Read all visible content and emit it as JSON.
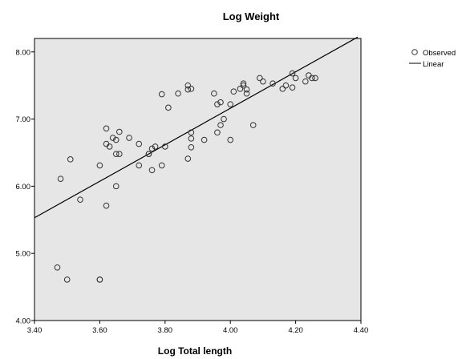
{
  "chart_data": {
    "type": "scatter",
    "title": "Log Weight",
    "xlabel": "Log Total length",
    "ylabel": "",
    "xlim": [
      3.4,
      4.4
    ],
    "ylim": [
      4.0,
      8.2
    ],
    "x_ticks": [
      3.4,
      3.6,
      3.8,
      4.0,
      4.2,
      4.4
    ],
    "x_tick_labels": [
      "3.40",
      "3.60",
      "3.80",
      "4.00",
      "4.20",
      "4.40"
    ],
    "y_ticks": [
      4.0,
      5.0,
      6.0,
      7.0,
      8.0
    ],
    "y_tick_labels": [
      "4.00",
      "5.00",
      "6.00",
      "7.00",
      "8.00"
    ],
    "grid": false,
    "plot_background": "#e6e6e6",
    "legend": {
      "placement": "right",
      "entries": [
        "Observed",
        "Linear"
      ]
    },
    "series": [
      {
        "name": "Observed",
        "marker": "open-circle",
        "color": "#333333",
        "points": [
          [
            3.48,
            6.11
          ],
          [
            3.51,
            6.4
          ],
          [
            3.47,
            4.79
          ],
          [
            3.5,
            4.61
          ],
          [
            3.54,
            5.8
          ],
          [
            3.6,
            6.31
          ],
          [
            3.6,
            4.61
          ],
          [
            3.6,
            4.61
          ],
          [
            3.62,
            6.86
          ],
          [
            3.62,
            6.63
          ],
          [
            3.63,
            6.59
          ],
          [
            3.64,
            6.72
          ],
          [
            3.65,
            6.69
          ],
          [
            3.66,
            6.81
          ],
          [
            3.65,
            6.48
          ],
          [
            3.66,
            6.48
          ],
          [
            3.65,
            6.0
          ],
          [
            3.62,
            5.71
          ],
          [
            3.69,
            6.72
          ],
          [
            3.72,
            6.63
          ],
          [
            3.72,
            6.31
          ],
          [
            3.75,
            6.48
          ],
          [
            3.75,
            6.48
          ],
          [
            3.76,
            6.56
          ],
          [
            3.77,
            6.59
          ],
          [
            3.76,
            6.24
          ],
          [
            3.79,
            6.31
          ],
          [
            3.79,
            7.37
          ],
          [
            3.8,
            6.59
          ],
          [
            3.81,
            7.17
          ],
          [
            3.84,
            7.38
          ],
          [
            3.87,
            7.5
          ],
          [
            3.87,
            7.44
          ],
          [
            3.88,
            7.45
          ],
          [
            3.88,
            6.8
          ],
          [
            3.88,
            6.71
          ],
          [
            3.88,
            6.58
          ],
          [
            3.87,
            6.41
          ],
          [
            3.92,
            6.69
          ],
          [
            3.95,
            7.38
          ],
          [
            3.96,
            7.22
          ],
          [
            3.97,
            7.25
          ],
          [
            3.96,
            6.8
          ],
          [
            3.97,
            6.91
          ],
          [
            3.98,
            7.0
          ],
          [
            4.0,
            7.22
          ],
          [
            4.01,
            7.41
          ],
          [
            4.0,
            6.69
          ],
          [
            4.03,
            7.45
          ],
          [
            4.04,
            7.5
          ],
          [
            4.04,
            7.53
          ],
          [
            4.05,
            7.44
          ],
          [
            4.05,
            7.38
          ],
          [
            4.07,
            6.91
          ],
          [
            4.09,
            7.61
          ],
          [
            4.1,
            7.56
          ],
          [
            4.13,
            7.53
          ],
          [
            4.16,
            7.45
          ],
          [
            4.17,
            7.5
          ],
          [
            4.19,
            7.47
          ],
          [
            4.2,
            7.61
          ],
          [
            4.19,
            7.68
          ],
          [
            4.23,
            7.56
          ],
          [
            4.24,
            7.65
          ],
          [
            4.25,
            7.61
          ],
          [
            4.26,
            7.61
          ]
        ]
      },
      {
        "name": "Linear",
        "type": "line",
        "color": "#000000",
        "points": [
          [
            3.4,
            5.53
          ],
          [
            4.39,
            8.22
          ]
        ]
      }
    ]
  }
}
